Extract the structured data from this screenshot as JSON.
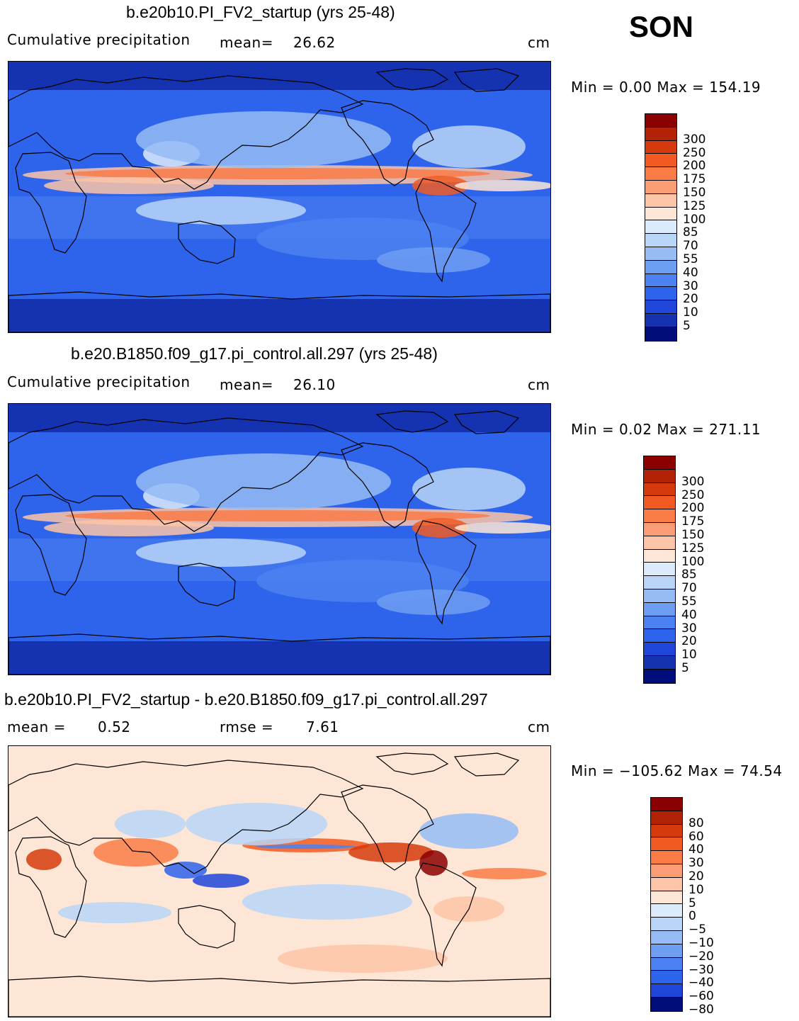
{
  "season": "SON",
  "panels": [
    {
      "title": "b.e20b10.PI_FV2_startup (yrs 25-48)",
      "left_label": "Cumulative precipitation",
      "mean_text": "mean=",
      "mean_value": "26.62",
      "units": "cm",
      "minmax": "Min =    0.00 Max = 154.19",
      "map_kind": "abs",
      "colorbar": {
        "colors": [
          "#8b0000",
          "#b22205",
          "#d6390c",
          "#f15a22",
          "#fa7b46",
          "#fb9d74",
          "#fdc4a7",
          "#fde6d6",
          "#dcebfb",
          "#b9d5f8",
          "#95bcf5",
          "#6e9ef2",
          "#4b81f0",
          "#2e63ec",
          "#1f45d9",
          "#1533b0",
          "#000d7a"
        ],
        "labels": [
          "300",
          "250",
          "200",
          "175",
          "150",
          "125",
          "100",
          "85",
          "70",
          "55",
          "40",
          "30",
          "20",
          "10",
          "5"
        ]
      }
    },
    {
      "title": "b.e20.B1850.f09_g17.pi_control.all.297 (yrs 25-48)",
      "left_label": "Cumulative precipitation",
      "mean_text": "mean=",
      "mean_value": "26.10",
      "units": "cm",
      "minmax": "Min =    0.02 Max = 271.11",
      "map_kind": "abs",
      "colorbar": {
        "colors": [
          "#8b0000",
          "#b22205",
          "#d6390c",
          "#f15a22",
          "#fa7b46",
          "#fb9d74",
          "#fdc4a7",
          "#fde6d6",
          "#dcebfb",
          "#b9d5f8",
          "#95bcf5",
          "#6e9ef2",
          "#4b81f0",
          "#2e63ec",
          "#1f45d9",
          "#1533b0",
          "#000d7a"
        ],
        "labels": [
          "300",
          "250",
          "200",
          "175",
          "150",
          "125",
          "100",
          "85",
          "70",
          "55",
          "40",
          "30",
          "20",
          "10",
          "5"
        ]
      }
    },
    {
      "title": "b.e20b10.PI_FV2_startup - b.e20.B1850.f09_g17.pi_control.all.297",
      "left_label": "mean =",
      "left_value": "0.52",
      "rmse_text": "rmse =",
      "rmse_value": "7.61",
      "units": "cm",
      "minmax": "Min = −105.62 Max =   74.54",
      "map_kind": "diff",
      "colorbar": {
        "colors": [
          "#8b0000",
          "#b22205",
          "#d6390c",
          "#f15a22",
          "#fa7b46",
          "#fb9d74",
          "#fdc4a7",
          "#fde6d6",
          "#dcebfb",
          "#b9d5f8",
          "#95bcf5",
          "#6e9ef2",
          "#4b81f0",
          "#2e63ec",
          "#1f45d9",
          "#000d7a"
        ],
        "labels": [
          "80",
          "60",
          "40",
          "30",
          "20",
          "10",
          "5",
          "0",
          "−5",
          "−10",
          "−20",
          "−30",
          "−40",
          "−60",
          "−80"
        ]
      }
    }
  ]
}
